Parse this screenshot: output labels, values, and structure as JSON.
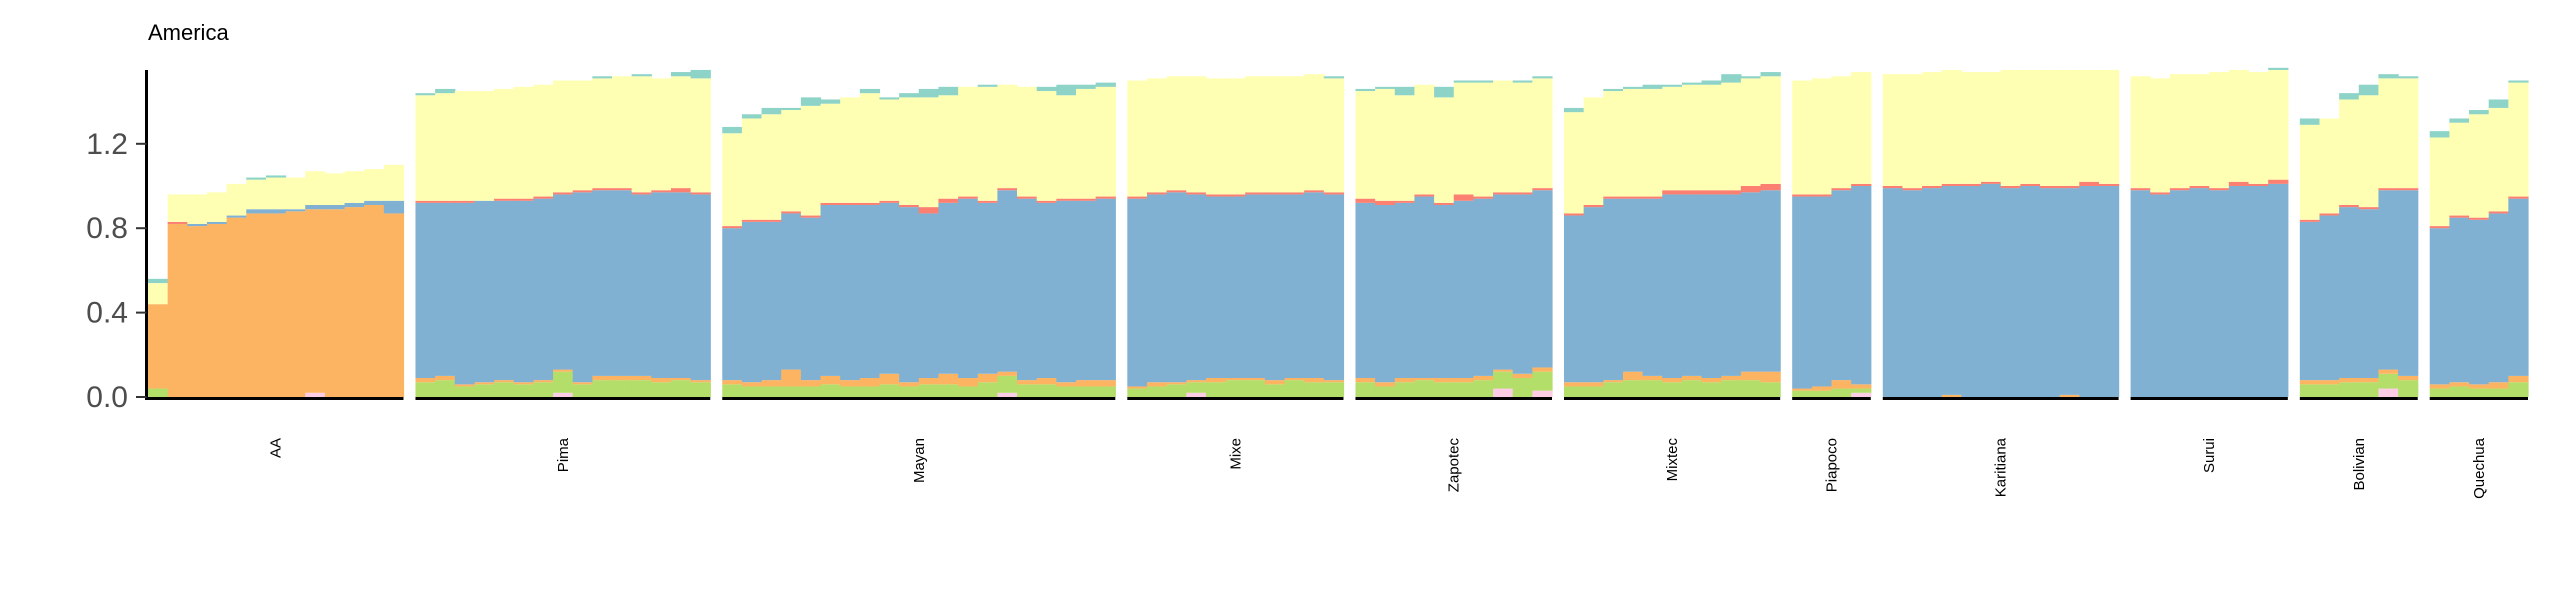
{
  "chart_data": {
    "type": "bar",
    "stacked": true,
    "title": "America",
    "xlabel": "",
    "ylabel": "",
    "ylim": [
      0,
      1.6
    ],
    "yticks": [
      0.0,
      0.4,
      0.8,
      1.2
    ],
    "ytick_labels": [
      "0.0",
      "0.4",
      "0.8",
      "1.2"
    ],
    "grid": false,
    "legend": "none",
    "component_colors": {
      "orange": "#fdb462",
      "blue": "#80b1d3",
      "yellow": "#ffffb3",
      "teal": "#8dd3c7",
      "green": "#b3de69",
      "red": "#fb8072",
      "pink": "#fccde5"
    },
    "stack_order": [
      "pink",
      "green",
      "orange",
      "blue",
      "red",
      "yellow",
      "teal"
    ],
    "groups": [
      {
        "name": "AA",
        "bars": [
          {
            "green": 0.04,
            "orange": 0.4,
            "yellow": 0.1,
            "teal": 0.02
          },
          {
            "orange": 0.82,
            "red": 0.01,
            "yellow": 0.13
          },
          {
            "orange": 0.81,
            "blue": 0.01,
            "yellow": 0.14
          },
          {
            "orange": 0.82,
            "blue": 0.01,
            "yellow": 0.14
          },
          {
            "orange": 0.85,
            "blue": 0.01,
            "yellow": 0.15
          },
          {
            "orange": 0.87,
            "blue": 0.02,
            "yellow": 0.14,
            "teal": 0.01
          },
          {
            "orange": 0.87,
            "blue": 0.02,
            "yellow": 0.15,
            "teal": 0.01
          },
          {
            "orange": 0.88,
            "blue": 0.01,
            "yellow": 0.15
          },
          {
            "pink": 0.02,
            "orange": 0.87,
            "blue": 0.02,
            "yellow": 0.16
          },
          {
            "orange": 0.89,
            "blue": 0.02,
            "yellow": 0.15
          },
          {
            "orange": 0.9,
            "blue": 0.02,
            "yellow": 0.15
          },
          {
            "orange": 0.91,
            "blue": 0.02,
            "yellow": 0.15
          },
          {
            "orange": 0.87,
            "blue": 0.06,
            "yellow": 0.17
          }
        ]
      },
      {
        "name": "Pima",
        "bars": [
          {
            "green": 0.07,
            "orange": 0.02,
            "blue": 0.83,
            "red": 0.01,
            "yellow": 0.5,
            "teal": 0.01
          },
          {
            "green": 0.08,
            "orange": 0.02,
            "blue": 0.82,
            "red": 0.01,
            "yellow": 0.51,
            "teal": 0.02
          },
          {
            "green": 0.05,
            "orange": 0.01,
            "blue": 0.86,
            "red": 0.01,
            "yellow": 0.52
          },
          {
            "green": 0.06,
            "orange": 0.01,
            "blue": 0.86,
            "yellow": 0.52
          },
          {
            "green": 0.07,
            "orange": 0.01,
            "blue": 0.85,
            "red": 0.01,
            "yellow": 0.52
          },
          {
            "green": 0.06,
            "orange": 0.01,
            "blue": 0.86,
            "red": 0.01,
            "yellow": 0.53
          },
          {
            "green": 0.07,
            "orange": 0.01,
            "blue": 0.86,
            "red": 0.01,
            "yellow": 0.53
          },
          {
            "pink": 0.02,
            "green": 0.1,
            "orange": 0.01,
            "blue": 0.83,
            "red": 0.01,
            "yellow": 0.53
          },
          {
            "green": 0.06,
            "orange": 0.01,
            "blue": 0.9,
            "red": 0.01,
            "yellow": 0.52
          },
          {
            "green": 0.08,
            "orange": 0.02,
            "blue": 0.88,
            "red": 0.01,
            "yellow": 0.52,
            "teal": 0.01
          },
          {
            "green": 0.08,
            "orange": 0.02,
            "blue": 0.88,
            "red": 0.01,
            "yellow": 0.53
          },
          {
            "green": 0.08,
            "orange": 0.02,
            "blue": 0.86,
            "red": 0.01,
            "yellow": 0.55,
            "teal": 0.01
          },
          {
            "green": 0.07,
            "orange": 0.02,
            "blue": 0.88,
            "red": 0.01,
            "yellow": 0.53
          },
          {
            "green": 0.08,
            "orange": 0.01,
            "blue": 0.88,
            "red": 0.02,
            "yellow": 0.53,
            "teal": 0.02
          },
          {
            "green": 0.07,
            "orange": 0.01,
            "blue": 0.88,
            "red": 0.01,
            "yellow": 0.54,
            "teal": 0.04
          }
        ]
      },
      {
        "name": "Mayan",
        "bars": [
          {
            "green": 0.06,
            "orange": 0.02,
            "blue": 0.72,
            "red": 0.01,
            "yellow": 0.44,
            "teal": 0.03
          },
          {
            "green": 0.05,
            "orange": 0.02,
            "blue": 0.76,
            "red": 0.01,
            "yellow": 0.48,
            "teal": 0.02
          },
          {
            "green": 0.05,
            "orange": 0.03,
            "blue": 0.75,
            "red": 0.01,
            "yellow": 0.5,
            "teal": 0.03
          },
          {
            "green": 0.05,
            "orange": 0.08,
            "blue": 0.74,
            "red": 0.01,
            "yellow": 0.48,
            "teal": 0.01
          },
          {
            "green": 0.05,
            "orange": 0.03,
            "blue": 0.77,
            "red": 0.01,
            "yellow": 0.52,
            "teal": 0.04
          },
          {
            "green": 0.06,
            "orange": 0.04,
            "blue": 0.81,
            "red": 0.01,
            "yellow": 0.47,
            "teal": 0.02
          },
          {
            "green": 0.05,
            "orange": 0.03,
            "blue": 0.83,
            "red": 0.01,
            "yellow": 0.5
          },
          {
            "green": 0.05,
            "orange": 0.04,
            "blue": 0.82,
            "red": 0.01,
            "yellow": 0.52,
            "teal": 0.02
          },
          {
            "green": 0.06,
            "orange": 0.05,
            "blue": 0.81,
            "red": 0.01,
            "yellow": 0.48,
            "teal": 0.01
          },
          {
            "green": 0.05,
            "orange": 0.02,
            "blue": 0.83,
            "red": 0.01,
            "yellow": 0.51,
            "teal": 0.02
          },
          {
            "green": 0.06,
            "orange": 0.03,
            "blue": 0.78,
            "red": 0.03,
            "yellow": 0.52,
            "teal": 0.04
          },
          {
            "green": 0.06,
            "orange": 0.05,
            "blue": 0.81,
            "red": 0.02,
            "yellow": 0.49,
            "teal": 0.04
          },
          {
            "green": 0.05,
            "orange": 0.04,
            "blue": 0.85,
            "red": 0.01,
            "yellow": 0.52
          },
          {
            "green": 0.07,
            "orange": 0.04,
            "blue": 0.81,
            "red": 0.01,
            "yellow": 0.54,
            "teal": 0.01
          },
          {
            "pink": 0.02,
            "green": 0.08,
            "orange": 0.02,
            "blue": 0.86,
            "red": 0.01,
            "yellow": 0.49
          },
          {
            "green": 0.06,
            "orange": 0.02,
            "blue": 0.86,
            "red": 0.01,
            "yellow": 0.52
          },
          {
            "green": 0.06,
            "orange": 0.03,
            "blue": 0.83,
            "red": 0.01,
            "yellow": 0.52,
            "teal": 0.02
          },
          {
            "green": 0.05,
            "orange": 0.02,
            "blue": 0.86,
            "red": 0.01,
            "yellow": 0.49,
            "teal": 0.05
          },
          {
            "green": 0.05,
            "orange": 0.03,
            "blue": 0.85,
            "red": 0.01,
            "yellow": 0.52,
            "teal": 0.02
          },
          {
            "green": 0.05,
            "orange": 0.03,
            "blue": 0.86,
            "red": 0.01,
            "yellow": 0.52,
            "teal": 0.02
          }
        ]
      },
      {
        "name": "Mixe",
        "bars": [
          {
            "green": 0.04,
            "orange": 0.01,
            "blue": 0.89,
            "red": 0.01,
            "yellow": 0.55
          },
          {
            "green": 0.05,
            "orange": 0.02,
            "blue": 0.89,
            "red": 0.01,
            "yellow": 0.54
          },
          {
            "green": 0.06,
            "orange": 0.01,
            "blue": 0.9,
            "red": 0.01,
            "yellow": 0.54
          },
          {
            "pink": 0.02,
            "green": 0.05,
            "orange": 0.01,
            "blue": 0.88,
            "red": 0.01,
            "yellow": 0.55
          },
          {
            "green": 0.07,
            "orange": 0.02,
            "blue": 0.86,
            "red": 0.01,
            "yellow": 0.55
          },
          {
            "green": 0.08,
            "orange": 0.01,
            "blue": 0.86,
            "red": 0.01,
            "yellow": 0.55
          },
          {
            "green": 0.08,
            "orange": 0.01,
            "blue": 0.87,
            "red": 0.01,
            "yellow": 0.55
          },
          {
            "green": 0.06,
            "orange": 0.02,
            "blue": 0.88,
            "red": 0.01,
            "yellow": 0.55
          },
          {
            "green": 0.08,
            "orange": 0.01,
            "blue": 0.87,
            "red": 0.01,
            "yellow": 0.55
          },
          {
            "green": 0.07,
            "orange": 0.02,
            "blue": 0.88,
            "red": 0.01,
            "yellow": 0.55
          },
          {
            "green": 0.07,
            "orange": 0.01,
            "blue": 0.88,
            "red": 0.01,
            "yellow": 0.54,
            "teal": 0.01
          }
        ]
      },
      {
        "name": "Zapotec",
        "bars": [
          {
            "green": 0.07,
            "orange": 0.02,
            "blue": 0.83,
            "red": 0.02,
            "yellow": 0.51,
            "teal": 0.01
          },
          {
            "green": 0.05,
            "orange": 0.02,
            "blue": 0.84,
            "red": 0.02,
            "yellow": 0.53,
            "teal": 0.01
          },
          {
            "green": 0.07,
            "orange": 0.02,
            "blue": 0.83,
            "red": 0.01,
            "yellow": 0.5,
            "teal": 0.04
          },
          {
            "green": 0.08,
            "orange": 0.01,
            "blue": 0.86,
            "red": 0.01,
            "yellow": 0.52
          },
          {
            "green": 0.07,
            "orange": 0.02,
            "blue": 0.82,
            "red": 0.01,
            "yellow": 0.5,
            "teal": 0.05
          },
          {
            "green": 0.07,
            "orange": 0.02,
            "blue": 0.84,
            "red": 0.03,
            "yellow": 0.53,
            "teal": 0.01
          },
          {
            "green": 0.08,
            "orange": 0.02,
            "blue": 0.84,
            "red": 0.01,
            "yellow": 0.54,
            "teal": 0.01
          },
          {
            "pink": 0.04,
            "green": 0.08,
            "orange": 0.01,
            "blue": 0.83,
            "red": 0.01,
            "yellow": 0.53
          },
          {
            "green": 0.09,
            "orange": 0.02,
            "blue": 0.85,
            "red": 0.01,
            "yellow": 0.52,
            "teal": 0.01
          },
          {
            "pink": 0.03,
            "green": 0.09,
            "orange": 0.02,
            "blue": 0.84,
            "red": 0.01,
            "yellow": 0.52,
            "teal": 0.01
          }
        ]
      },
      {
        "name": "Mixtec",
        "bars": [
          {
            "green": 0.05,
            "orange": 0.02,
            "blue": 0.79,
            "red": 0.01,
            "yellow": 0.48,
            "teal": 0.02
          },
          {
            "green": 0.05,
            "orange": 0.02,
            "blue": 0.83,
            "red": 0.01,
            "yellow": 0.51
          },
          {
            "green": 0.07,
            "orange": 0.01,
            "blue": 0.86,
            "red": 0.01,
            "yellow": 0.5,
            "teal": 0.01
          },
          {
            "green": 0.08,
            "orange": 0.04,
            "blue": 0.82,
            "red": 0.01,
            "yellow": 0.51,
            "teal": 0.01
          },
          {
            "green": 0.08,
            "orange": 0.02,
            "blue": 0.84,
            "red": 0.01,
            "yellow": 0.51,
            "teal": 0.02
          },
          {
            "green": 0.07,
            "orange": 0.02,
            "blue": 0.87,
            "red": 0.02,
            "yellow": 0.49,
            "teal": 0.01
          },
          {
            "green": 0.08,
            "orange": 0.02,
            "blue": 0.86,
            "red": 0.02,
            "yellow": 0.5,
            "teal": 0.01
          },
          {
            "green": 0.07,
            "orange": 0.02,
            "blue": 0.87,
            "red": 0.02,
            "yellow": 0.5,
            "teal": 0.02
          },
          {
            "green": 0.08,
            "orange": 0.02,
            "blue": 0.86,
            "red": 0.02,
            "yellow": 0.51,
            "teal": 0.04
          },
          {
            "green": 0.08,
            "orange": 0.04,
            "blue": 0.85,
            "red": 0.03,
            "yellow": 0.51,
            "teal": 0.01
          },
          {
            "green": 0.07,
            "orange": 0.05,
            "blue": 0.86,
            "red": 0.03,
            "yellow": 0.51,
            "teal": 0.02
          }
        ]
      },
      {
        "name": "Piapoco",
        "bars": [
          {
            "green": 0.03,
            "orange": 0.01,
            "blue": 0.91,
            "red": 0.01,
            "yellow": 0.54
          },
          {
            "green": 0.03,
            "orange": 0.02,
            "blue": 0.9,
            "red": 0.01,
            "yellow": 0.55
          },
          {
            "green": 0.04,
            "orange": 0.04,
            "blue": 0.9,
            "red": 0.01,
            "yellow": 0.53
          },
          {
            "pink": 0.02,
            "green": 0.02,
            "orange": 0.02,
            "blue": 0.94,
            "red": 0.01,
            "yellow": 0.53
          }
        ]
      },
      {
        "name": "Karitiana",
        "bars": [
          {
            "blue": 0.99,
            "red": 0.01,
            "yellow": 0.53
          },
          {
            "blue": 0.98,
            "red": 0.01,
            "yellow": 0.54
          },
          {
            "blue": 0.99,
            "red": 0.01,
            "yellow": 0.54
          },
          {
            "orange": 0.01,
            "blue": 0.99,
            "red": 0.01,
            "yellow": 0.54
          },
          {
            "blue": 1.0,
            "red": 0.01,
            "yellow": 0.53
          },
          {
            "blue": 1.01,
            "red": 0.01,
            "yellow": 0.52
          },
          {
            "blue": 0.99,
            "red": 0.01,
            "yellow": 0.55
          },
          {
            "blue": 1.0,
            "red": 0.01,
            "yellow": 0.54
          },
          {
            "blue": 0.99,
            "red": 0.01,
            "yellow": 0.55
          },
          {
            "orange": 0.01,
            "blue": 0.98,
            "red": 0.01,
            "yellow": 0.55
          },
          {
            "blue": 1.0,
            "red": 0.02,
            "yellow": 0.53
          },
          {
            "blue": 1.0,
            "red": 0.01,
            "yellow": 0.54
          }
        ]
      },
      {
        "name": "Surui",
        "bars": [
          {
            "blue": 0.98,
            "red": 0.01,
            "yellow": 0.53
          },
          {
            "blue": 0.96,
            "red": 0.01,
            "yellow": 0.54
          },
          {
            "blue": 0.98,
            "red": 0.01,
            "yellow": 0.54
          },
          {
            "blue": 0.99,
            "red": 0.01,
            "yellow": 0.53
          },
          {
            "blue": 0.98,
            "red": 0.01,
            "yellow": 0.55
          },
          {
            "blue": 1.0,
            "red": 0.02,
            "yellow": 0.53
          },
          {
            "blue": 1.0,
            "red": 0.01,
            "yellow": 0.53
          },
          {
            "blue": 1.01,
            "red": 0.02,
            "yellow": 0.52,
            "teal": 0.01
          }
        ]
      },
      {
        "name": "Bolivian",
        "bars": [
          {
            "green": 0.06,
            "orange": 0.02,
            "blue": 0.75,
            "red": 0.01,
            "yellow": 0.45,
            "teal": 0.03
          },
          {
            "green": 0.06,
            "orange": 0.02,
            "blue": 0.78,
            "red": 0.01,
            "yellow": 0.45
          },
          {
            "green": 0.07,
            "orange": 0.02,
            "blue": 0.81,
            "red": 0.01,
            "yellow": 0.5,
            "teal": 0.03
          },
          {
            "green": 0.07,
            "orange": 0.02,
            "blue": 0.8,
            "red": 0.01,
            "yellow": 0.53,
            "teal": 0.05
          },
          {
            "pink": 0.04,
            "green": 0.07,
            "orange": 0.02,
            "blue": 0.85,
            "red": 0.01,
            "yellow": 0.52,
            "teal": 0.02
          },
          {
            "green": 0.08,
            "orange": 0.02,
            "blue": 0.88,
            "red": 0.01,
            "yellow": 0.52,
            "teal": 0.01
          }
        ]
      },
      {
        "name": "Quechua",
        "bars": [
          {
            "green": 0.04,
            "orange": 0.02,
            "blue": 0.74,
            "red": 0.01,
            "yellow": 0.42,
            "teal": 0.03
          },
          {
            "green": 0.05,
            "orange": 0.02,
            "blue": 0.78,
            "red": 0.01,
            "yellow": 0.44,
            "teal": 0.02
          },
          {
            "green": 0.04,
            "orange": 0.02,
            "blue": 0.78,
            "red": 0.01,
            "yellow": 0.49,
            "teal": 0.02
          },
          {
            "green": 0.04,
            "orange": 0.03,
            "blue": 0.8,
            "red": 0.01,
            "yellow": 0.49,
            "teal": 0.04
          },
          {
            "green": 0.07,
            "orange": 0.03,
            "blue": 0.84,
            "red": 0.01,
            "yellow": 0.54,
            "teal": 0.01
          }
        ]
      }
    ]
  }
}
